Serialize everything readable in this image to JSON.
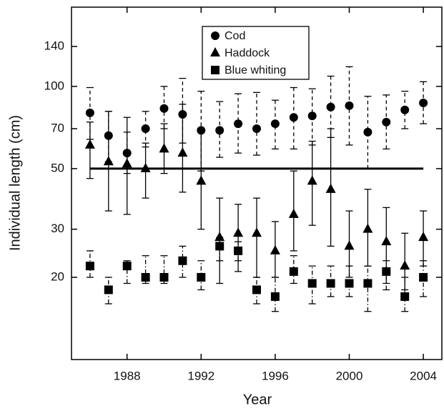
{
  "chart_data": {
    "type": "errorbar-scatter",
    "xlabel": "Year",
    "ylabel": "Individual length (cm)",
    "xlim": [
      1985,
      2005
    ],
    "xticks": [
      1988,
      1992,
      1996,
      2000,
      2004
    ],
    "ylim": [
      10,
      195
    ],
    "yticks": [
      20,
      30,
      50,
      70,
      100,
      140
    ],
    "log_y": true,
    "hline": 50,
    "legend": "top-center",
    "color": "#000000",
    "x": [
      1986,
      1987,
      1988,
      1989,
      1990,
      1991,
      1992,
      1993,
      1994,
      1995,
      1996,
      1997,
      1998,
      1999,
      2000,
      2001,
      2002,
      2003,
      2004
    ],
    "series": [
      {
        "name": "Cod",
        "marker": "circle",
        "dash": "5,4",
        "values": [
          80,
          66,
          57,
          70,
          83,
          79,
          69,
          69,
          73,
          70,
          73,
          77,
          78,
          84,
          85,
          68,
          74,
          82,
          87
        ],
        "low": [
          64,
          53,
          48,
          60,
          70,
          62,
          49,
          55,
          57,
          56,
          59,
          59,
          61,
          65,
          61,
          50,
          59,
          70,
          73
        ],
        "high": [
          99,
          81,
          68,
          81,
          100,
          107,
          96,
          88,
          94,
          95,
          89,
          99,
          98,
          109,
          118,
          92,
          93,
          96,
          104
        ]
      },
      {
        "name": "Haddock",
        "marker": "triangle",
        "dash": "none",
        "values": [
          61,
          53,
          52,
          50,
          59,
          57,
          45,
          28,
          29,
          29,
          25,
          34,
          45,
          42,
          26,
          30,
          27,
          22,
          28
        ],
        "low": [
          46,
          35,
          34,
          39,
          48,
          41,
          30,
          19,
          21,
          20,
          20,
          25,
          31,
          26,
          20,
          22,
          19,
          18,
          22
        ],
        "high": [
          74,
          81,
          77,
          62,
          73,
          86,
          68,
          39,
          37,
          39,
          32,
          49,
          63,
          70,
          35,
          42,
          36,
          29,
          35
        ]
      },
      {
        "name": "Blue whiting",
        "marker": "square",
        "dash": "6,3,1.5,3",
        "values": [
          22,
          18,
          22,
          20,
          20,
          23,
          20,
          26,
          25,
          18,
          17,
          21,
          19,
          19,
          19,
          19,
          21,
          17,
          20
        ],
        "low": [
          20,
          16,
          19,
          19,
          19,
          20,
          18,
          23,
          23,
          16,
          15,
          19,
          16,
          17,
          17,
          15,
          18,
          15,
          17
        ],
        "high": [
          25,
          20,
          23,
          24,
          24,
          26,
          23,
          28,
          27,
          20,
          20,
          24,
          22,
          22,
          22,
          22,
          23,
          20,
          23
        ]
      }
    ]
  }
}
